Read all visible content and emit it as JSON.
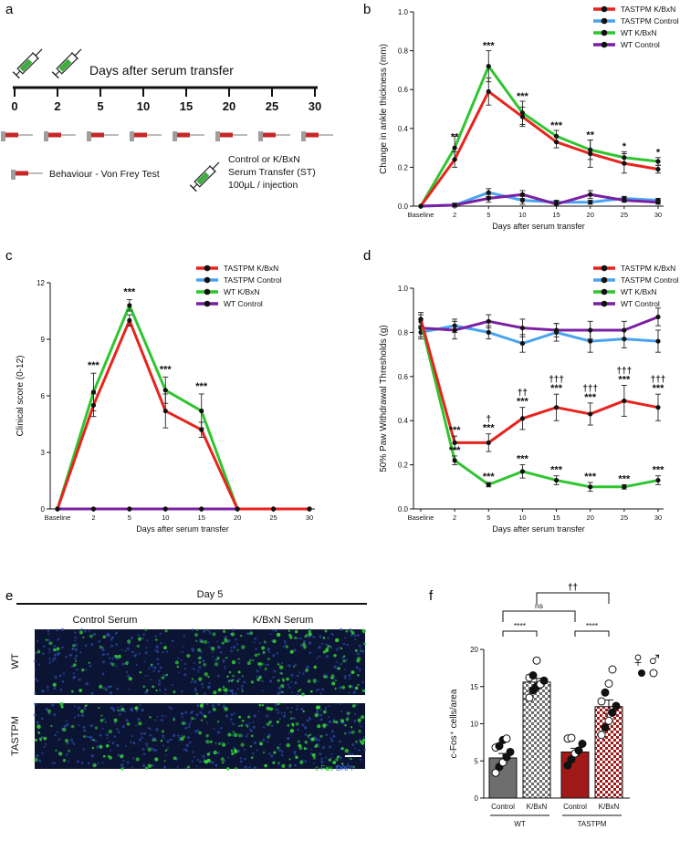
{
  "panels": {
    "a": "a",
    "b": "b",
    "c": "c",
    "d": "d",
    "e": "e",
    "f": "f"
  },
  "panel_a": {
    "title": "Days after serum transfer",
    "days": [
      "0",
      "2",
      "5",
      "10",
      "15",
      "20",
      "25",
      "30"
    ],
    "legend_behaviour": "Behaviour - Von Frey Test",
    "legend_st_line1": "Control or K/BxN",
    "legend_st_line2": "Serum Transfer (ST)",
    "legend_st_line3": "100μL / injection",
    "colors": {
      "syringe_fluid": "#3fae3f",
      "probe": "#c62828",
      "handle": "#9e9e9e"
    },
    "icons": [
      "syringe-icon",
      "von-frey-probe-icon"
    ]
  },
  "series_colors": {
    "tastpm_kbxn": "#e8231d",
    "tastpm_control": "#4aa3f0",
    "wt_kbxn": "#2fc52f",
    "wt_control": "#7a1fa2"
  },
  "chart_data": [
    {
      "id": "b",
      "type": "line",
      "ylabel": "Change in ankle thickness (mm)",
      "xlabel": "Days after serum transfer",
      "x": [
        "Baseline",
        "2",
        "5",
        "10",
        "15",
        "20",
        "25",
        "30"
      ],
      "ylim": [
        0,
        1.0
      ],
      "yticks": [
        "0.0",
        "0.2",
        "0.4",
        "0.6",
        "0.8",
        "1.0"
      ],
      "legend_position": "top-right",
      "series": [
        {
          "name": "TASTPM K/BxN",
          "values": [
            0,
            0.24,
            0.59,
            0.46,
            0.33,
            0.27,
            0.22,
            0.19
          ],
          "err": [
            0,
            0.04,
            0.07,
            0.05,
            0.03,
            0.07,
            0.05,
            0.02
          ]
        },
        {
          "name": "TASTPM Control",
          "values": [
            0,
            0.005,
            0.07,
            0.03,
            0.02,
            0.02,
            0.04,
            0.03
          ],
          "err": [
            0,
            0.01,
            0.02,
            0.02,
            0.01,
            0.01,
            0.01,
            0.01
          ]
        },
        {
          "name": "WT K/BxN",
          "values": [
            0,
            0.3,
            0.72,
            0.48,
            0.36,
            0.29,
            0.25,
            0.23
          ],
          "err": [
            0,
            0.06,
            0.08,
            0.06,
            0.03,
            0.05,
            0.03,
            0.02
          ]
        },
        {
          "name": "WT Control",
          "values": [
            0,
            0.005,
            0.04,
            0.06,
            0.01,
            0.06,
            0.03,
            0.02
          ],
          "err": [
            0,
            0.01,
            0.02,
            0.02,
            0.01,
            0.02,
            0.01,
            0.01
          ]
        }
      ],
      "annotations": [
        {
          "x": "2",
          "text": "**"
        },
        {
          "x": "5",
          "text": "***"
        },
        {
          "x": "10",
          "text": "***"
        },
        {
          "x": "15",
          "text": "***"
        },
        {
          "x": "20",
          "text": "**"
        },
        {
          "x": "25",
          "text": "*"
        },
        {
          "x": "30",
          "text": "*"
        }
      ]
    },
    {
      "id": "c",
      "type": "line",
      "ylabel": "Clinical score (0-12)",
      "xlabel": "Days after serum transfer",
      "x": [
        "Baseline",
        "2",
        "5",
        "10",
        "15",
        "20",
        "25",
        "30"
      ],
      "ylim": [
        0,
        12
      ],
      "yticks": [
        "0",
        "3",
        "6",
        "9",
        "12"
      ],
      "legend_position": "top-right",
      "series": [
        {
          "name": "TASTPM K/BxN",
          "values": [
            0,
            5.5,
            10.0,
            5.2,
            4.2,
            0,
            0,
            0
          ],
          "err": [
            0,
            0.6,
            0.3,
            0.9,
            0.4,
            0,
            0,
            0
          ]
        },
        {
          "name": "TASTPM Control",
          "values": [
            0,
            0,
            0,
            0,
            0,
            0,
            0,
            0
          ],
          "err": [
            0,
            0,
            0,
            0,
            0,
            0,
            0,
            0
          ]
        },
        {
          "name": "WT K/BxN",
          "values": [
            0,
            6.2,
            10.8,
            6.3,
            5.2,
            0,
            0,
            0
          ],
          "err": [
            0,
            1.0,
            0.3,
            0.7,
            0.9,
            0,
            0,
            0
          ]
        },
        {
          "name": "WT Control",
          "values": [
            0,
            0,
            0,
            0,
            0,
            0,
            0,
            0
          ],
          "err": [
            0,
            0,
            0,
            0,
            0,
            0,
            0,
            0
          ]
        }
      ],
      "annotations": [
        {
          "x": "2",
          "text": "***"
        },
        {
          "x": "5",
          "text": "***"
        },
        {
          "x": "10",
          "text": "***"
        },
        {
          "x": "15",
          "text": "***"
        }
      ]
    },
    {
      "id": "d",
      "type": "line",
      "ylabel": "50% Paw Withdrawal Thresholds (g)",
      "xlabel": "Days after serum transfer",
      "x": [
        "Baseline",
        "2",
        "5",
        "10",
        "15",
        "20",
        "25",
        "30"
      ],
      "ylim": [
        0,
        1.0
      ],
      "yticks": [
        "0.0",
        "0.2",
        "0.4",
        "0.6",
        "0.8",
        "1.0"
      ],
      "legend_position": "top-right",
      "series": [
        {
          "name": "TASTPM K/BxN",
          "values": [
            0.86,
            0.3,
            0.3,
            0.41,
            0.46,
            0.43,
            0.49,
            0.46
          ],
          "err": [
            0.03,
            0.03,
            0.04,
            0.05,
            0.06,
            0.05,
            0.07,
            0.06
          ]
        },
        {
          "name": "TASTPM Control",
          "values": [
            0.8,
            0.83,
            0.8,
            0.75,
            0.8,
            0.76,
            0.77,
            0.76
          ],
          "err": [
            0.03,
            0.03,
            0.03,
            0.04,
            0.04,
            0.05,
            0.04,
            0.05
          ]
        },
        {
          "name": "WT K/BxN",
          "values": [
            0.85,
            0.22,
            0.11,
            0.17,
            0.13,
            0.1,
            0.1,
            0.13
          ],
          "err": [
            0.03,
            0.02,
            0.01,
            0.03,
            0.02,
            0.02,
            0.01,
            0.02
          ]
        },
        {
          "name": "WT Control",
          "values": [
            0.82,
            0.81,
            0.85,
            0.82,
            0.81,
            0.81,
            0.81,
            0.87
          ],
          "err": [
            0.04,
            0.04,
            0.03,
            0.04,
            0.03,
            0.04,
            0.04,
            0.04
          ]
        }
      ],
      "annotations": [
        {
          "x": "2",
          "lines": [
            "***",
            "***"
          ]
        },
        {
          "x": "5",
          "lines": [
            "†",
            "***",
            "***"
          ]
        },
        {
          "x": "10",
          "lines": [
            "††",
            "***",
            "***"
          ]
        },
        {
          "x": "15",
          "lines": [
            "†††",
            "***",
            "***"
          ]
        },
        {
          "x": "20",
          "lines": [
            "†††",
            "***",
            "***"
          ]
        },
        {
          "x": "25",
          "lines": [
            "†††",
            "***",
            "***"
          ]
        },
        {
          "x": "30",
          "lines": [
            "†††",
            "***",
            "***"
          ]
        }
      ]
    },
    {
      "id": "f",
      "type": "bar",
      "ylabel": "c-Fos⁺ cells/area",
      "categories": [
        "Control",
        "K/BxN",
        "Control",
        "K/BxN"
      ],
      "groups": [
        "WT",
        "TASTPM"
      ],
      "values": [
        5.4,
        15.6,
        6.2,
        12.3
      ],
      "err": [
        0.6,
        0.5,
        0.5,
        0.9
      ],
      "ylim": [
        0,
        20
      ],
      "yticks": [
        "0",
        "5",
        "10",
        "15",
        "20"
      ],
      "bar_colors": [
        "#6e6e6e",
        "checker-gray",
        "#a11a1a",
        "checker-red"
      ],
      "points": [
        [
          [
            3.4,
            "f"
          ],
          [
            4.2,
            "m"
          ],
          [
            4.8,
            "f"
          ],
          [
            5.5,
            "m"
          ],
          [
            6.2,
            "m"
          ],
          [
            6.8,
            "f"
          ],
          [
            7.0,
            "m"
          ],
          [
            7.8,
            "m"
          ],
          [
            8.0,
            "f"
          ]
        ],
        [
          [
            13.5,
            "f"
          ],
          [
            14.5,
            "m"
          ],
          [
            15.0,
            "m"
          ],
          [
            15.3,
            "f"
          ],
          [
            15.8,
            "m"
          ],
          [
            16.2,
            "f"
          ],
          [
            16.5,
            "m"
          ],
          [
            18.5,
            "f"
          ]
        ],
        [
          [
            4.4,
            "m"
          ],
          [
            5.2,
            "m"
          ],
          [
            6.0,
            "f"
          ],
          [
            6.4,
            "m"
          ],
          [
            7.3,
            "m"
          ],
          [
            8.0,
            "f"
          ],
          [
            8.1,
            "f"
          ]
        ],
        [
          [
            8.5,
            "f"
          ],
          [
            9.5,
            "m"
          ],
          [
            10.4,
            "f"
          ],
          [
            11.5,
            "m"
          ],
          [
            12.4,
            "m"
          ],
          [
            13.0,
            "f"
          ],
          [
            14.2,
            "m"
          ],
          [
            15.4,
            "f"
          ],
          [
            17.3,
            "f"
          ]
        ]
      ],
      "comparisons": [
        {
          "from": 0,
          "to": 1,
          "text": "****"
        },
        {
          "from": 2,
          "to": 3,
          "text": "****"
        },
        {
          "from": 0,
          "to": 2,
          "text": "ns"
        },
        {
          "from": 1,
          "to": 3,
          "text": "††"
        }
      ],
      "sex_symbols": "♀♂"
    }
  ],
  "panel_e": {
    "title": "Day 5",
    "columns": [
      "Control Serum",
      "K/BxN Serum"
    ],
    "rows": [
      "WT",
      "TASTPM"
    ],
    "channel_1": "c-Fos",
    "channel_2": "DAPI",
    "channel_colors": {
      "c-Fos": "#2ecc2e",
      "DAPI": "#3a6ee0"
    },
    "cell_density": [
      [
        0.35,
        0.9
      ],
      [
        0.45,
        0.85
      ]
    ]
  }
}
